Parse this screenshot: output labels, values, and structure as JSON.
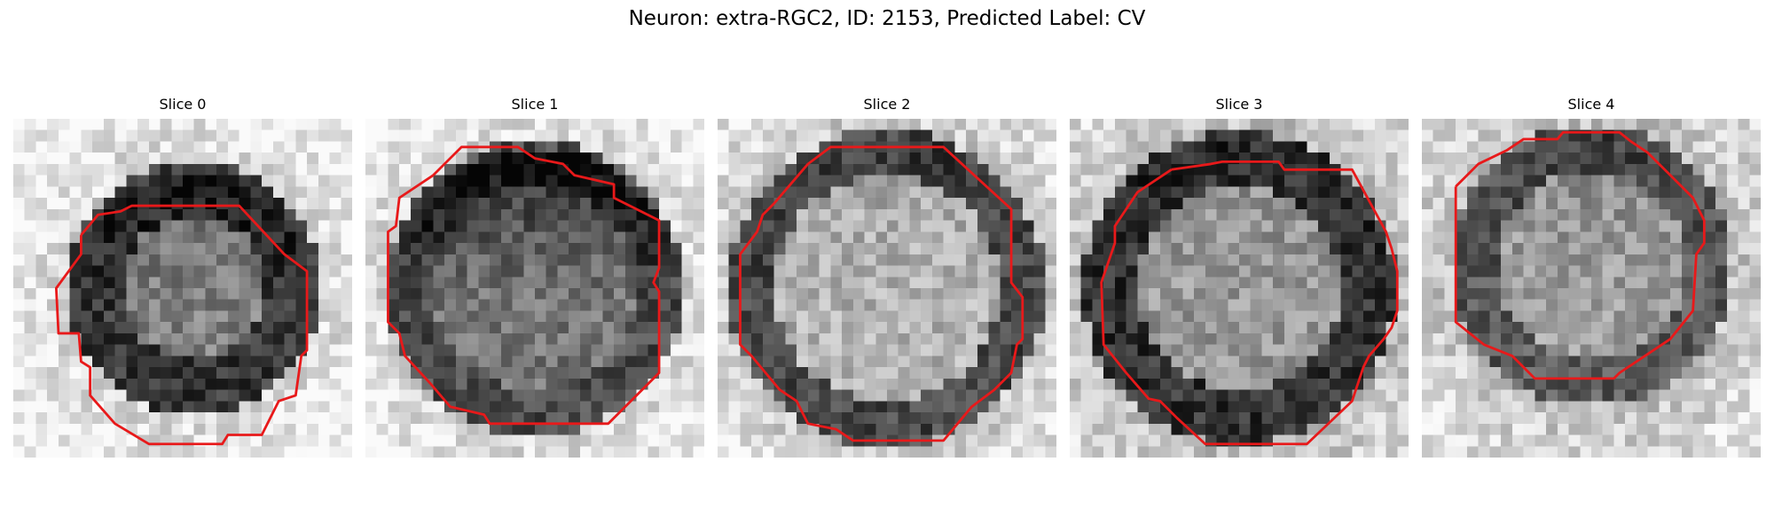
{
  "figure": {
    "title": "Neuron: extra-RGC2, ID: 2153, Predicted Label: CV"
  },
  "outline_color": "#e8191a",
  "panels": [
    {
      "title": "Slice 0",
      "image": "grayscale cell patch with red segmentation contour"
    },
    {
      "title": "Slice 1",
      "image": "grayscale cell patch with red segmentation contour"
    },
    {
      "title": "Slice 2",
      "image": "grayscale cell patch with red segmentation contour"
    },
    {
      "title": "Slice 3",
      "image": "grayscale cell patch with red segmentation contour"
    },
    {
      "title": "Slice 4",
      "image": "grayscale cell patch with red segmentation contour"
    }
  ]
}
